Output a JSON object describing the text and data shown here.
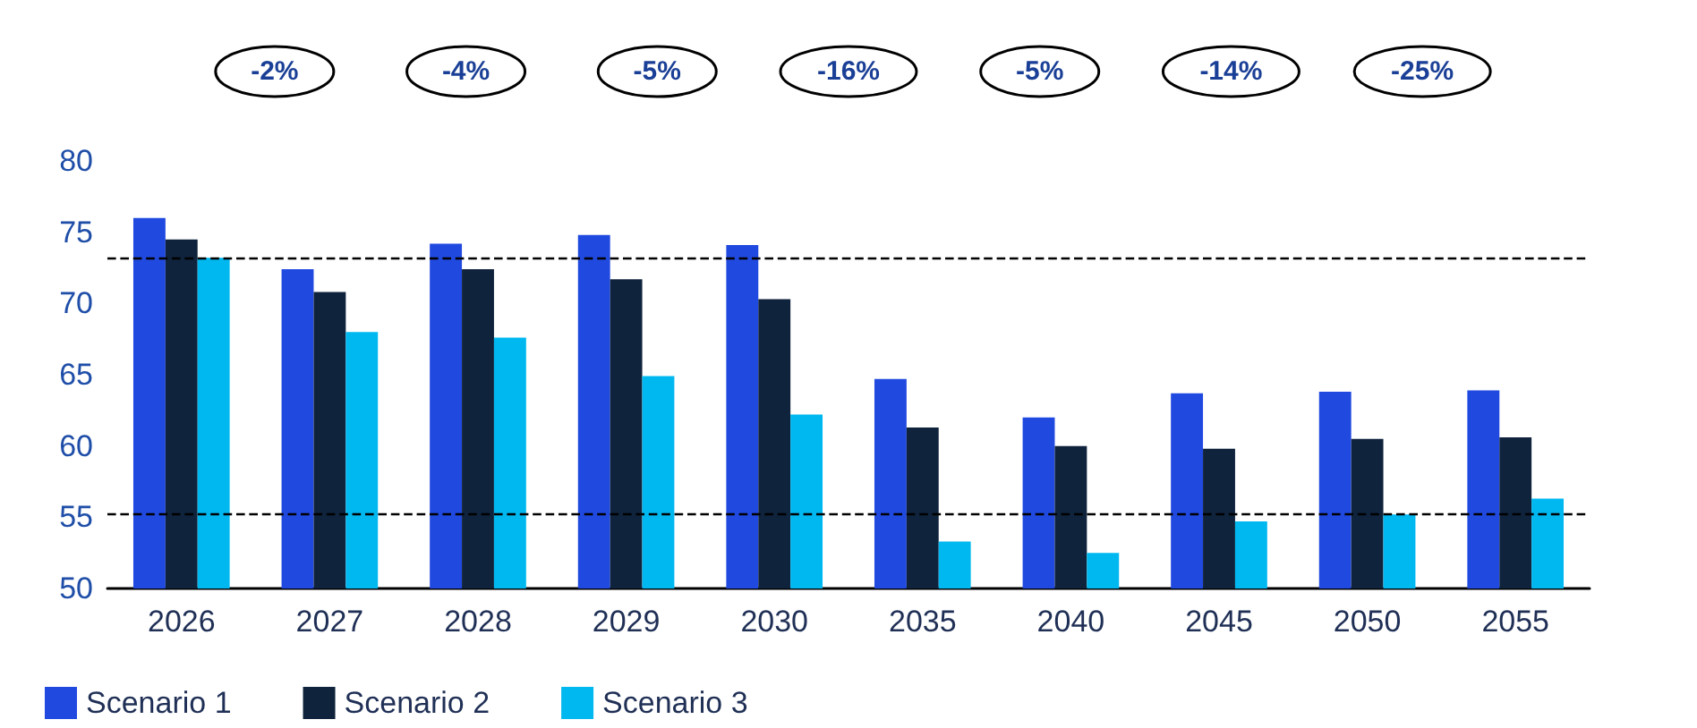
{
  "chart_data": {
    "type": "bar",
    "categories": [
      "2026",
      "2027",
      "2028",
      "2029",
      "2030",
      "2035",
      "2040",
      "2045",
      "2050",
      "2055"
    ],
    "series": [
      {
        "name": "Scenario 1",
        "color": "#2049e0",
        "values": [
          76.0,
          72.4,
          74.2,
          74.8,
          74.1,
          64.7,
          62.0,
          63.7,
          63.8,
          63.9
        ]
      },
      {
        "name": "Scenario 2",
        "color": "#0f233c",
        "values": [
          74.5,
          70.8,
          72.4,
          71.7,
          70.3,
          61.3,
          60.0,
          59.8,
          60.5,
          60.6
        ]
      },
      {
        "name": "Scenario 3",
        "color": "#00b8f0",
        "values": [
          73.2,
          68.0,
          67.6,
          64.9,
          62.2,
          53.3,
          52.5,
          54.7,
          55.2,
          56.3
        ]
      }
    ],
    "ylim": [
      50,
      80
    ],
    "yticks": [
      50,
      55,
      60,
      65,
      70,
      75,
      80
    ],
    "grid": false,
    "legend": "bottom left",
    "ref_lines": [
      {
        "axis": "y",
        "value": 73.2,
        "color": "#000000",
        "line_style": "dashed"
      },
      {
        "axis": "y",
        "value": 55.2,
        "color": "#000000",
        "line_style": "dashed"
      }
    ],
    "annotations": [
      "-2%",
      "-4%",
      "-5%",
      "-16%",
      "-5%",
      "-14%",
      "-25%"
    ]
  }
}
